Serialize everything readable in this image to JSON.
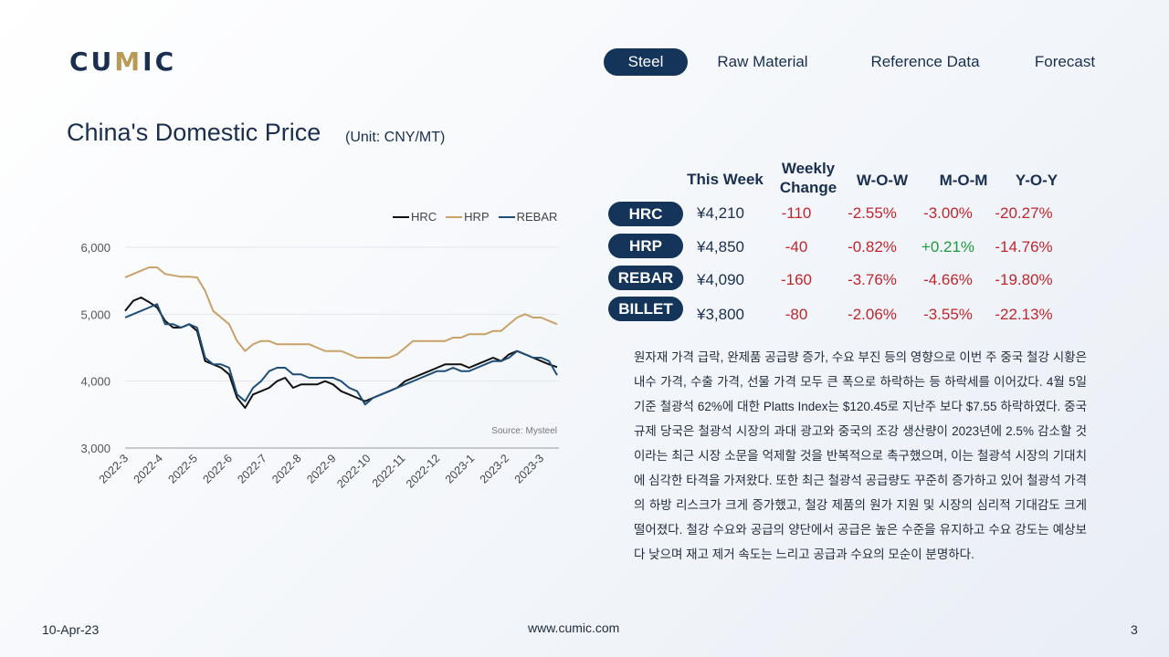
{
  "brand": {
    "logo_pre": "CU",
    "logo_accent": "M",
    "logo_post": "IC"
  },
  "nav": {
    "tabs": [
      "Steel",
      "Raw Material",
      "Reference Data",
      "Forecast"
    ],
    "active": "Steel"
  },
  "header": {
    "title": "China's Domestic Price",
    "unit": "(Unit: CNY/MT)"
  },
  "table": {
    "columns": [
      "This Week",
      "Weekly Change",
      "W-O-W",
      "M-O-M",
      "Y-O-Y"
    ],
    "rows": [
      {
        "product": "HRC",
        "price": "¥4,210",
        "change": "-110",
        "wow": "-2.55%",
        "mom": "-3.00%",
        "yoy": "-20.27%"
      },
      {
        "product": "HRP",
        "price": "¥4,850",
        "change": "-40",
        "wow": "-0.82%",
        "mom": "+0.21%",
        "yoy": "-14.76%"
      },
      {
        "product": "REBAR",
        "price": "¥4,090",
        "change": "-160",
        "wow": "-3.76%",
        "mom": "-4.66%",
        "yoy": "-19.80%"
      },
      {
        "product": "BILLET",
        "price": "¥3,800",
        "change": "-80",
        "wow": "-2.06%",
        "mom": "-3.55%",
        "yoy": "-22.13%"
      }
    ]
  },
  "commentary": "원자재 가격 급락, 완제품 공급량 증가, 수요 부진 등의 영향으로 이번 주 중국 철강 시황은 내수 가격, 수출 가격, 선물 가격 모두 큰 폭으로 하락하는 등 하락세를 이어갔다. 4월 5일 기준 철광석 62%에 대한 Platts Index는 $120.45로 지난주 보다 $7.55 하락하였다. 중국 규제 당국은 철광석 시장의 과대 광고와 중국의 조강 생산량이 2023년에 2.5% 감소할 것이라는 최근 시장 소문을 억제할 것을 반복적으로 촉구했으며, 이는 철광석 시장의 기대치에 심각한 타격을 가져왔다. 또한 최근 철광석 공급량도 꾸준히 증가하고 있어 철광석 가격의 하방 리스크가 크게 증가했고, 철강 제품의 원가 지원 및 시장의 심리적 기대감도 크게 떨어졌다. 철강 수요와 공급의 양단에서 공급은 높은 수준을 유지하고 수요 강도는 예상보다 낮으며 재고 제거 속도는 느리고 공급과 수요의 모순이 분명하다.",
  "chart_data": {
    "type": "line",
    "x_ticks": [
      "2022-3",
      "2022-4",
      "2022-5",
      "2022-6",
      "2022-7",
      "2022-8",
      "2022-9",
      "2022-10",
      "2022-11",
      "2022-12",
      "2023-1",
      "2023-2",
      "2023-3"
    ],
    "y_ticks": [
      "6,000",
      "5,000",
      "4,000",
      "3,000"
    ],
    "ylim": [
      3000,
      6000
    ],
    "legend": "top-right",
    "source": "Source: Mysteel",
    "series": [
      {
        "name": "HRC",
        "color": "#111111",
        "values": [
          5050,
          5200,
          5250,
          5180,
          5100,
          4900,
          4800,
          4800,
          4850,
          4750,
          4300,
          4250,
          4200,
          4100,
          3750,
          3600,
          3800,
          3850,
          3900,
          4000,
          4050,
          3900,
          3950,
          3950,
          3950,
          4000,
          3950,
          3850,
          3800,
          3750,
          3700,
          3750,
          3800,
          3850,
          3900,
          4000,
          4050,
          4100,
          4150,
          4200,
          4250,
          4250,
          4250,
          4200,
          4250,
          4300,
          4350,
          4300,
          4400,
          4450,
          4400,
          4350,
          4300,
          4250,
          4210
        ]
      },
      {
        "name": "HRP",
        "color": "#c8a268",
        "values": [
          5550,
          5600,
          5650,
          5700,
          5700,
          5600,
          5580,
          5560,
          5560,
          5550,
          5350,
          5050,
          4950,
          4850,
          4600,
          4450,
          4550,
          4600,
          4600,
          4550,
          4550,
          4550,
          4550,
          4550,
          4500,
          4450,
          4450,
          4450,
          4400,
          4350,
          4350,
          4350,
          4350,
          4350,
          4400,
          4500,
          4600,
          4600,
          4600,
          4600,
          4600,
          4650,
          4650,
          4700,
          4700,
          4700,
          4750,
          4750,
          4850,
          4950,
          5000,
          4950,
          4950,
          4900,
          4850
        ]
      },
      {
        "name": "REBAR",
        "color": "#1f4e79",
        "values": [
          4950,
          5000,
          5050,
          5100,
          5150,
          4850,
          4850,
          4800,
          4850,
          4800,
          4350,
          4250,
          4250,
          4200,
          3800,
          3700,
          3900,
          4000,
          4150,
          4200,
          4200,
          4100,
          4100,
          4050,
          4050,
          4050,
          4050,
          4000,
          3900,
          3850,
          3650,
          3750,
          3800,
          3850,
          3900,
          3950,
          4000,
          4050,
          4100,
          4150,
          4150,
          4200,
          4150,
          4150,
          4200,
          4250,
          4300,
          4300,
          4350,
          4450,
          4400,
          4350,
          4350,
          4300,
          4090
        ]
      }
    ]
  },
  "footer": {
    "date": "10-Apr-23",
    "url": "www.cumic.com",
    "page": "3"
  }
}
